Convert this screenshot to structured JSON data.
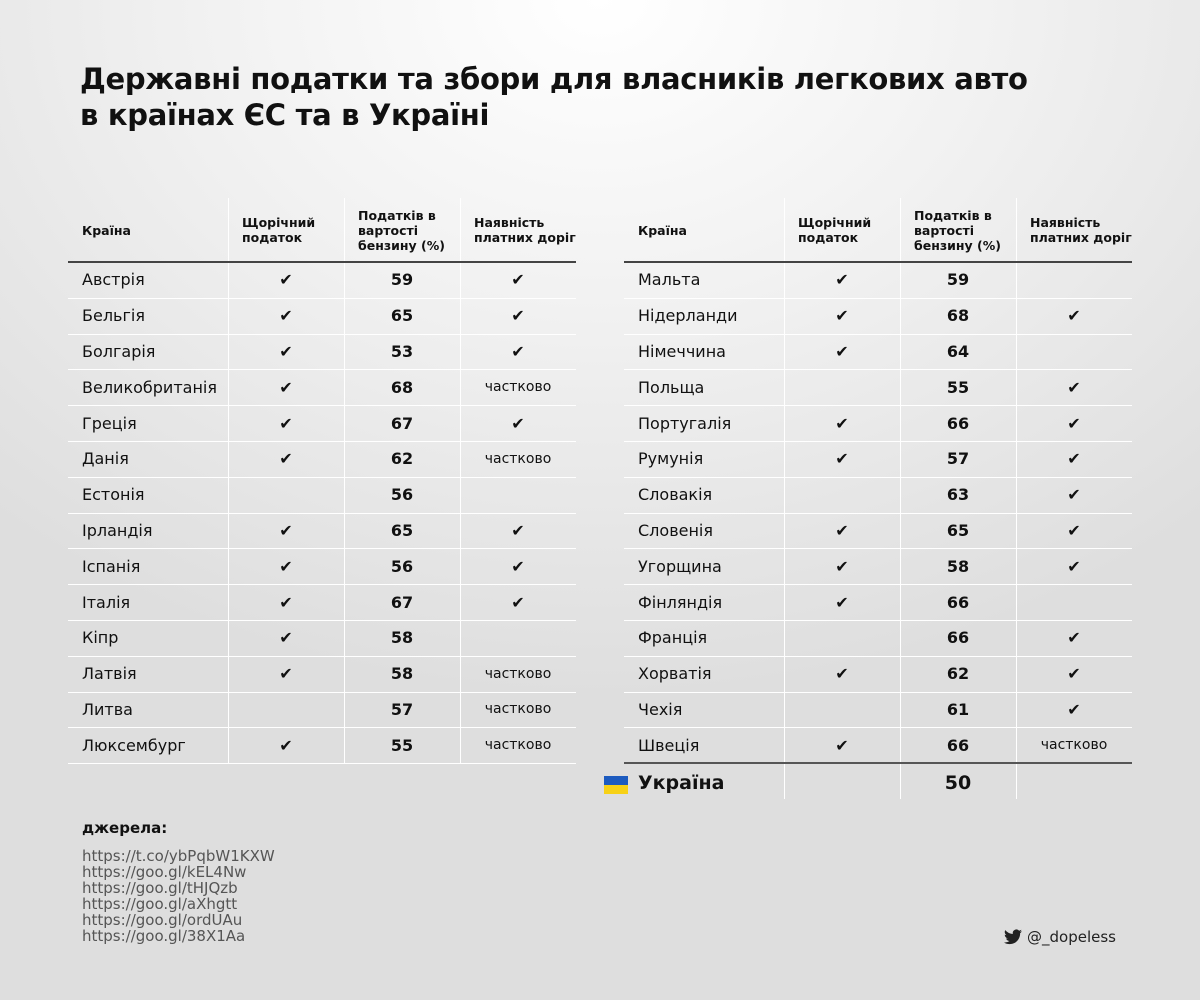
{
  "title": [
    "Державні податки та збори для власників легкових авто",
    "в країнах ЄС та в Україні"
  ],
  "tables": [
    {
      "headers": [
        "Країна",
        "Щорічний податок",
        "Податків в вартості бензину (%)",
        "Наявність платних доріг"
      ],
      "rows": [
        [
          "Австрія",
          "✔",
          59,
          "✔"
        ],
        [
          "Бельгія",
          "✔",
          65,
          "✔"
        ],
        [
          "Болгарія",
          "✔",
          53,
          "✔"
        ],
        [
          "Великобританія",
          "✔",
          68,
          "частково"
        ],
        [
          "Греція",
          "✔",
          67,
          "✔"
        ],
        [
          "Данія",
          "✔",
          62,
          "частково"
        ],
        [
          "Естонія",
          null,
          56,
          null
        ],
        [
          "Ірландія",
          "✔",
          65,
          "✔"
        ],
        [
          "Іспанія",
          "✔",
          56,
          "✔"
        ],
        [
          "Італія",
          "✔",
          67,
          "✔"
        ],
        [
          "Кіпр",
          "✔",
          58,
          null
        ],
        [
          "Латвія",
          "✔",
          58,
          "частково"
        ],
        [
          "Литва",
          null,
          57,
          "частково"
        ],
        [
          "Люксембург",
          "✔",
          55,
          "частково"
        ]
      ]
    },
    {
      "headers": [
        "Країна",
        "Щорічний податок",
        "Податків в вартості бензину (%)",
        "Наявність платних доріг"
      ],
      "rows": [
        [
          "Мальта",
          "✔",
          59,
          null
        ],
        [
          "Нідерланди",
          "✔",
          68,
          "✔"
        ],
        [
          "Німеччина",
          "✔",
          64,
          null
        ],
        [
          "Польща",
          null,
          55,
          "✔"
        ],
        [
          "Португалія",
          "✔",
          66,
          "✔"
        ],
        [
          "Румунія",
          "✔",
          57,
          "✔"
        ],
        [
          "Словакія",
          null,
          63,
          "✔"
        ],
        [
          "Словенія",
          "✔",
          65,
          "✔"
        ],
        [
          "Угорщина",
          "✔",
          58,
          "✔"
        ],
        [
          "Фінляндія",
          "✔",
          66,
          null
        ],
        [
          "Франція",
          null,
          66,
          "✔"
        ],
        [
          "Хорватія",
          "✔",
          62,
          "✔"
        ],
        [
          "Чехія",
          null,
          61,
          "✔"
        ],
        [
          "Швеція",
          "✔",
          66,
          "частково"
        ]
      ],
      "footer": [
        "Україна",
        null,
        50,
        null
      ]
    }
  ],
  "sources": {
    "label": "джерела:",
    "links": [
      "https://t.co/ybPqbW1KXW",
      "https://goo.gl/kEL4Nw",
      "https://goo.gl/tHJQzb",
      "https://goo.gl/aXhgtt",
      "https://goo.gl/ordUAu",
      "https://goo.gl/38X1Aa"
    ]
  },
  "credit": "@_dopeless"
}
